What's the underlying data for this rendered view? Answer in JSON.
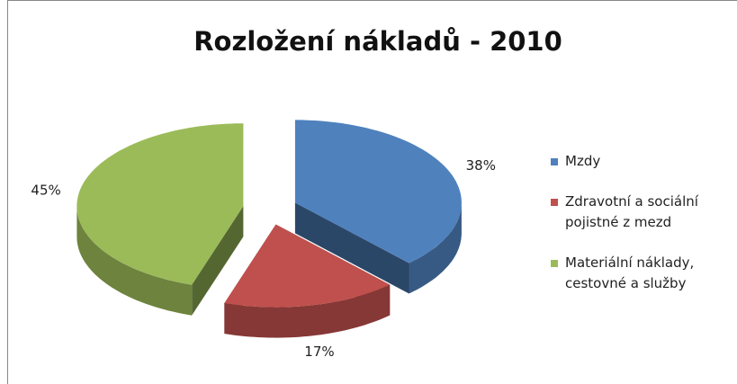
{
  "chart_data": {
    "type": "pie",
    "title": "Rozložení nákladů - 2010",
    "categories": [
      "Mzdy",
      "Zdravotní a sociální pojistné z mezd",
      "Materiální náklady, cestovné a služby"
    ],
    "values": [
      38,
      17,
      45
    ],
    "value_labels": [
      "38%",
      "17%",
      "45%"
    ],
    "colors": [
      "#4f81bd",
      "#c0504d",
      "#9bbb59"
    ],
    "legend": "right"
  }
}
